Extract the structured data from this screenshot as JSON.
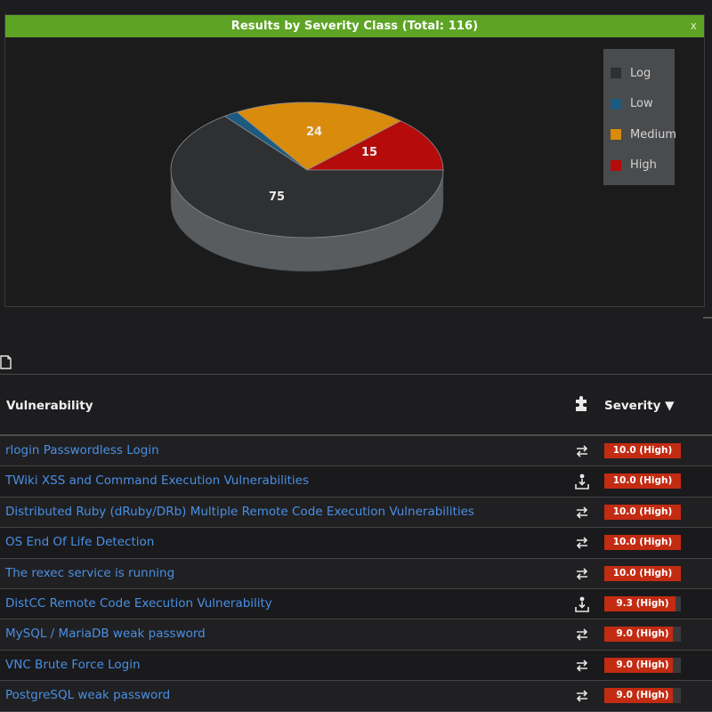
{
  "chart_panel": {
    "title": "Results by Severity Class (Total: 116)",
    "close_label": "x"
  },
  "chart_data": {
    "type": "pie",
    "title": "Results by Severity Class (Total: 116)",
    "total": 116,
    "slices": [
      {
        "name": "Log",
        "value": 75,
        "color": "#2f3032"
      },
      {
        "name": "Low",
        "value": 2,
        "color": "#1d5a80"
      },
      {
        "name": "Medium",
        "value": 24,
        "color": "#d98b0c"
      },
      {
        "name": "High",
        "value": 15,
        "color": "#b50b0b"
      }
    ],
    "data_labels": [
      "75",
      "24",
      "15"
    ],
    "legend_position": "right"
  },
  "legend": {
    "items": [
      {
        "label": "Log",
        "color": "#2f3032"
      },
      {
        "label": "Low",
        "color": "#1d5a80"
      },
      {
        "label": "Medium",
        "color": "#d98b0c"
      },
      {
        "label": "High",
        "color": "#b50b0b"
      }
    ]
  },
  "table": {
    "header": {
      "vulnerability": "Vulnerability",
      "plugin_icon": "puzzle-icon",
      "severity": "Severity ▼"
    },
    "rows": [
      {
        "name": "rlogin Passwordless Login",
        "icon": "exchange-icon",
        "severity": "10.0 (High)",
        "score": 10.0
      },
      {
        "name": "TWiki XSS and Command Execution Vulnerabilities",
        "icon": "install-icon",
        "severity": "10.0 (High)",
        "score": 10.0
      },
      {
        "name": "Distributed Ruby (dRuby/DRb) Multiple Remote Code Execution Vulnerabilities",
        "icon": "exchange-icon",
        "severity": "10.0 (High)",
        "score": 10.0
      },
      {
        "name": "OS End Of Life Detection",
        "icon": "exchange-icon",
        "severity": "10.0 (High)",
        "score": 10.0
      },
      {
        "name": "The rexec service is running",
        "icon": "exchange-icon",
        "severity": "10.0 (High)",
        "score": 10.0
      },
      {
        "name": "DistCC Remote Code Execution Vulnerability",
        "icon": "install-icon",
        "severity": "9.3 (High)",
        "score": 9.3
      },
      {
        "name": "MySQL / MariaDB weak password",
        "icon": "exchange-icon",
        "severity": "9.0 (High)",
        "score": 9.0
      },
      {
        "name": "VNC Brute Force Login",
        "icon": "exchange-icon",
        "severity": "9.0 (High)",
        "score": 9.0
      },
      {
        "name": "PostgreSQL weak password",
        "icon": "exchange-icon",
        "severity": "9.0 (High)",
        "score": 9.0
      }
    ]
  }
}
